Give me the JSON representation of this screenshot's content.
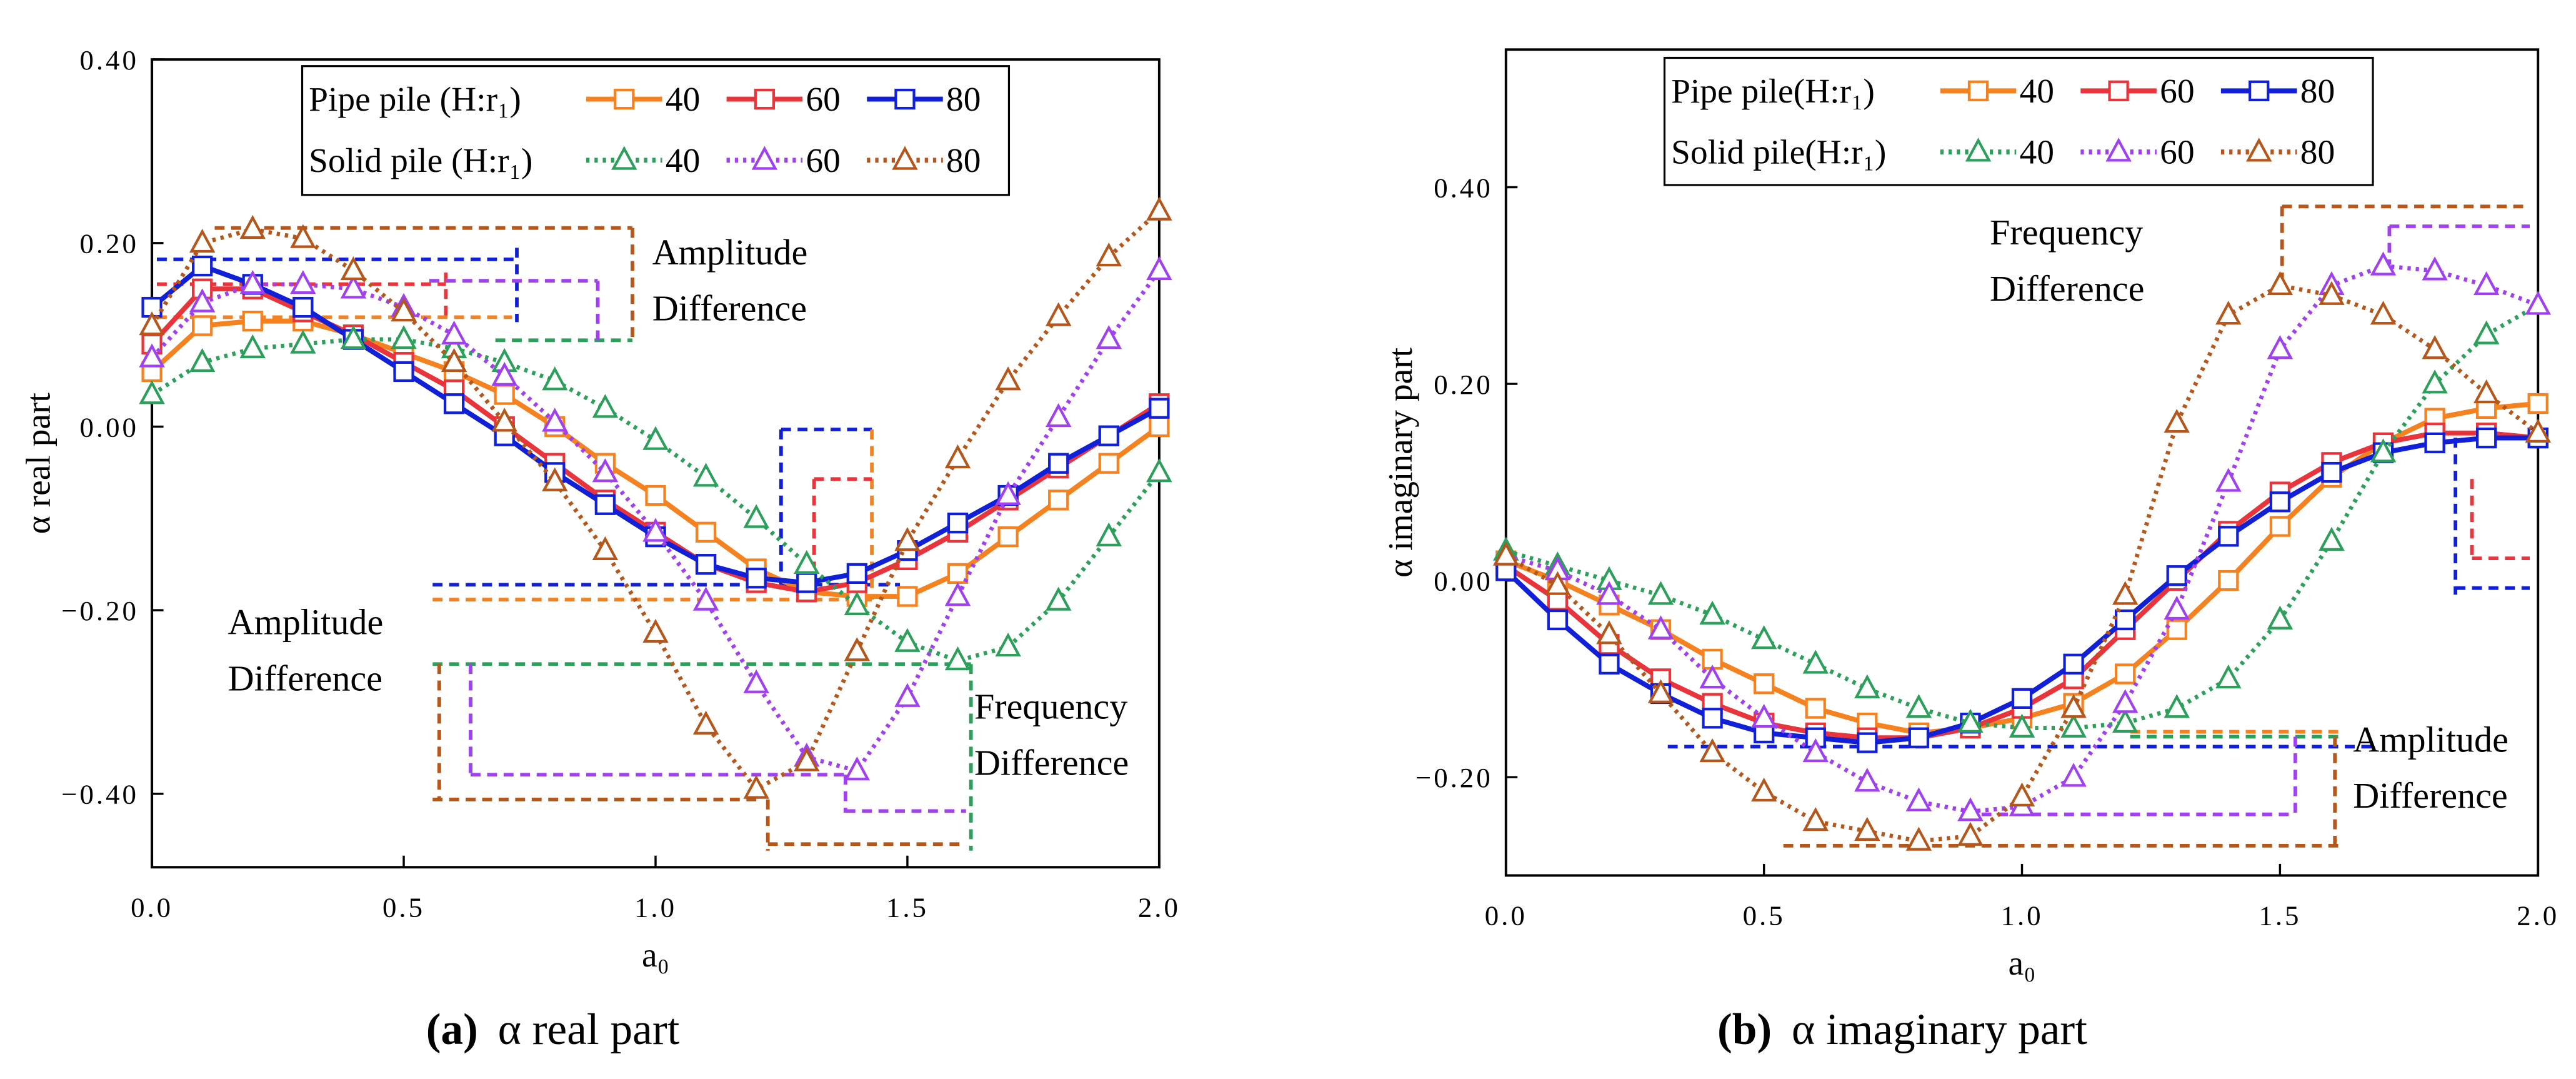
{
  "chart_data": [
    {
      "type": "line",
      "caption_label": "(a)",
      "caption": "α  real part",
      "xlabel": "a₀",
      "ylabel": "α real part",
      "xlim": [
        0,
        2
      ],
      "xticks": [
        {
          "value": 0,
          "label": "0.0"
        },
        0.5,
        {
          "value": 1,
          "label": "1.0"
        },
        1.5,
        {
          "value": 2,
          "label": "2.0"
        }
      ],
      "ylim": [
        -0.48,
        0.4
      ],
      "yticks": [
        {
          "value": 0.4,
          "label": "0.40"
        },
        {
          "value": 0.2,
          "label": "0.20"
        },
        {
          "value": 0,
          "label": "0.00"
        },
        {
          "value": -0.2,
          "label": "−0.20"
        },
        {
          "value": -0.4,
          "label": "−0.40"
        }
      ],
      "legend_groups": [
        "Pipe  pile (H:r₁)",
        "Solid pile (H:r₁)"
      ],
      "annotations": [
        {
          "lines": [
            "Amplitude",
            "Difference"
          ]
        },
        {
          "lines": [
            "Amplitude",
            "Difference"
          ]
        },
        {
          "lines": [
            "Frequency",
            "Difference"
          ]
        }
      ],
      "x": [
        0,
        0.1,
        0.2,
        0.3,
        0.4,
        0.5,
        0.6,
        0.7,
        0.8,
        0.9,
        1.0,
        1.1,
        1.2,
        1.3,
        1.4,
        1.5,
        1.6,
        1.7,
        1.8,
        1.9,
        2.0
      ],
      "series": [
        {
          "name": "40",
          "color": "#f5821f",
          "marker": "square",
          "dash": "solid",
          "values": [
            0.06,
            0.11,
            0.115,
            0.115,
            0.1,
            0.08,
            0.06,
            0.035,
            0.0,
            -0.04,
            -0.075,
            -0.115,
            -0.155,
            -0.18,
            -0.185,
            -0.185,
            -0.16,
            -0.12,
            -0.08,
            -0.04,
            0.0
          ]
        },
        {
          "name": "60",
          "color": "#e8343a",
          "marker": "square",
          "dash": "solid",
          "values": [
            0.09,
            0.15,
            0.15,
            0.125,
            0.1,
            0.07,
            0.04,
            0.0,
            -0.04,
            -0.08,
            -0.115,
            -0.15,
            -0.17,
            -0.18,
            -0.17,
            -0.145,
            -0.115,
            -0.08,
            -0.045,
            -0.01,
            0.025
          ]
        },
        {
          "name": "80",
          "color": "#1020d8",
          "marker": "square",
          "dash": "solid",
          "values": [
            0.13,
            0.175,
            0.155,
            0.13,
            0.095,
            0.06,
            0.025,
            -0.01,
            -0.05,
            -0.085,
            -0.12,
            -0.15,
            -0.165,
            -0.17,
            -0.16,
            -0.135,
            -0.105,
            -0.075,
            -0.04,
            -0.01,
            0.02
          ]
        },
        {
          "name": "40",
          "color": "#2ca05a",
          "marker": "triangle",
          "dash": "dotted",
          "values": [
            0.035,
            0.07,
            0.085,
            0.09,
            0.095,
            0.095,
            0.085,
            0.07,
            0.05,
            0.02,
            -0.015,
            -0.055,
            -0.1,
            -0.15,
            -0.195,
            -0.235,
            -0.255,
            -0.24,
            -0.19,
            -0.12,
            -0.05
          ]
        },
        {
          "name": "60",
          "color": "#a040f0",
          "marker": "triangle",
          "dash": "dotted",
          "values": [
            0.075,
            0.135,
            0.155,
            0.155,
            0.15,
            0.13,
            0.1,
            0.055,
            0.005,
            -0.05,
            -0.115,
            -0.19,
            -0.28,
            -0.36,
            -0.375,
            -0.295,
            -0.185,
            -0.075,
            0.01,
            0.095,
            0.17
          ]
        },
        {
          "name": "80",
          "color": "#b5561a",
          "marker": "triangle",
          "dash": "dotted",
          "values": [
            0.11,
            0.2,
            0.215,
            0.205,
            0.17,
            0.125,
            0.07,
            0.005,
            -0.06,
            -0.135,
            -0.225,
            -0.325,
            -0.395,
            -0.365,
            -0.245,
            -0.125,
            -0.035,
            0.05,
            0.12,
            0.185,
            0.235
          ]
        }
      ]
    },
    {
      "type": "line",
      "caption_label": "(b)",
      "caption": "α  imaginary part",
      "xlabel": "a₀",
      "ylabel": "α imaginary part",
      "xlim": [
        0,
        2
      ],
      "xticks": [
        {
          "value": 0,
          "label": "0.0"
        },
        0.5,
        {
          "value": 1,
          "label": "1.0"
        },
        1.5,
        {
          "value": 2,
          "label": "2.0"
        }
      ],
      "ylim": [
        -0.3,
        0.54
      ],
      "yticks": [
        {
          "value": 0.4,
          "label": "0.40"
        },
        {
          "value": 0.2,
          "label": "0.20"
        },
        {
          "value": 0,
          "label": "0.00"
        },
        {
          "value": -0.2,
          "label": "−0.20"
        }
      ],
      "legend_groups": [
        "Pipe  pile(H:r₁)",
        "Solid pile(H:r₁)"
      ],
      "annotations": [
        {
          "lines": [
            "Frequency",
            "Difference"
          ]
        },
        {
          "lines": [
            "Amplitude",
            "Difference"
          ]
        }
      ],
      "x": [
        0,
        0.1,
        0.2,
        0.3,
        0.4,
        0.5,
        0.6,
        0.7,
        0.8,
        0.9,
        1.0,
        1.1,
        1.2,
        1.3,
        1.4,
        1.5,
        1.6,
        1.7,
        1.8,
        1.9,
        2.0
      ],
      "series": [
        {
          "name": "40",
          "color": "#f5821f",
          "marker": "square",
          "dash": "solid",
          "values": [
            0.02,
            0.0,
            -0.025,
            -0.05,
            -0.08,
            -0.105,
            -0.13,
            -0.145,
            -0.155,
            -0.15,
            -0.14,
            -0.125,
            -0.095,
            -0.05,
            0.0,
            0.055,
            0.105,
            0.14,
            0.165,
            0.175,
            0.18
          ]
        },
        {
          "name": "60",
          "color": "#e8343a",
          "marker": "square",
          "dash": "solid",
          "values": [
            0.015,
            -0.02,
            -0.065,
            -0.1,
            -0.125,
            -0.145,
            -0.155,
            -0.16,
            -0.16,
            -0.15,
            -0.13,
            -0.1,
            -0.05,
            0.0,
            0.05,
            0.09,
            0.12,
            0.14,
            0.15,
            0.15,
            0.145
          ]
        },
        {
          "name": "80",
          "color": "#1020d8",
          "marker": "square",
          "dash": "solid",
          "values": [
            0.01,
            -0.04,
            -0.085,
            -0.115,
            -0.14,
            -0.155,
            -0.16,
            -0.165,
            -0.16,
            -0.145,
            -0.12,
            -0.085,
            -0.04,
            0.005,
            0.045,
            0.08,
            0.11,
            0.13,
            0.14,
            0.145,
            0.145
          ]
        },
        {
          "name": "40",
          "color": "#2ca05a",
          "marker": "triangle",
          "dash": "dotted",
          "values": [
            0.03,
            0.015,
            0.0,
            -0.015,
            -0.035,
            -0.06,
            -0.085,
            -0.11,
            -0.13,
            -0.145,
            -0.15,
            -0.15,
            -0.145,
            -0.13,
            -0.1,
            -0.04,
            0.04,
            0.13,
            0.2,
            0.25,
            0.28
          ]
        },
        {
          "name": "60",
          "color": "#a040f0",
          "marker": "triangle",
          "dash": "dotted",
          "values": [
            0.025,
            0.01,
            -0.015,
            -0.05,
            -0.1,
            -0.14,
            -0.175,
            -0.205,
            -0.225,
            -0.235,
            -0.23,
            -0.2,
            -0.125,
            -0.03,
            0.1,
            0.235,
            0.3,
            0.32,
            0.315,
            0.3,
            0.28
          ]
        },
        {
          "name": "80",
          "color": "#b5561a",
          "marker": "triangle",
          "dash": "dotted",
          "values": [
            0.025,
            -0.005,
            -0.055,
            -0.115,
            -0.175,
            -0.215,
            -0.245,
            -0.255,
            -0.265,
            -0.26,
            -0.22,
            -0.13,
            -0.015,
            0.16,
            0.27,
            0.3,
            0.29,
            0.27,
            0.235,
            0.19,
            0.15
          ]
        }
      ]
    }
  ]
}
